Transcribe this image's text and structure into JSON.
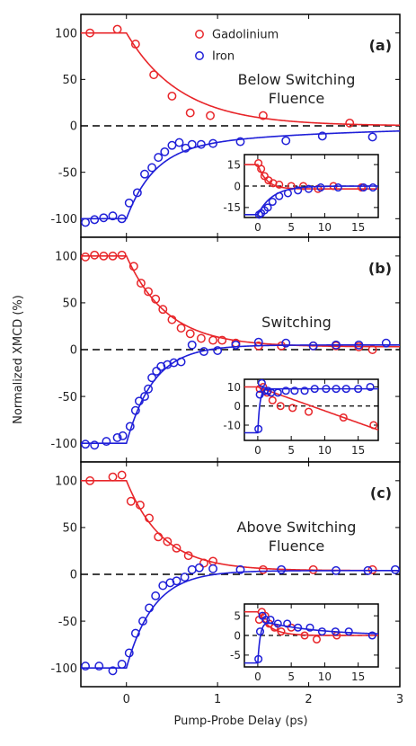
{
  "figure": {
    "ylabel": "Normalized XMCD (%)",
    "xlabel": "Pump-Probe Delay (ps)",
    "legend": [
      {
        "name": "Gadolinium",
        "color": "#e8262a"
      },
      {
        "name": "Iron",
        "color": "#1f1fd8"
      }
    ],
    "colors": {
      "gd": "#e8262a",
      "fe": "#1f1fd8",
      "axis": "#000000",
      "zero_line": "#000000"
    }
  },
  "chart_data": [
    {
      "type": "scatter",
      "panel": "(a)",
      "annotation": [
        "Below Switching",
        "Fluence"
      ],
      "xlim": [
        -0.5,
        3
      ],
      "ylim": [
        -120,
        120
      ],
      "xticks": [
        0,
        1,
        2,
        3
      ],
      "yticks": [
        -100,
        -50,
        0,
        50,
        100
      ],
      "zero_line": "dashed",
      "series": [
        {
          "name": "Gadolinium",
          "marker": "open-circle",
          "x": [
            -0.4,
            -0.1,
            0.1,
            0.3,
            0.5,
            0.7,
            0.92,
            1.5,
            2.45
          ],
          "y": [
            100,
            104,
            88,
            55,
            32,
            14,
            11,
            11,
            3
          ],
          "fit": {
            "t0": 0,
            "tau": 0.6,
            "start": 100,
            "end": 0
          }
        },
        {
          "name": "Iron",
          "marker": "open-circle",
          "x": [
            -0.45,
            -0.35,
            -0.25,
            -0.15,
            -0.05,
            0.03,
            0.12,
            0.2,
            0.28,
            0.35,
            0.42,
            0.5,
            0.58,
            0.65,
            0.72,
            0.82,
            0.95,
            1.25,
            1.75,
            2.15,
            2.7
          ],
          "y": [
            -104,
            -101,
            -99,
            -97,
            -100,
            -83,
            -72,
            -52,
            -45,
            -34,
            -28,
            -21,
            -18,
            -24,
            -20,
            -20,
            -19,
            -17,
            -16,
            -11,
            -12
          ],
          "fit": {
            "t0": 0,
            "tau": 0.3,
            "start": -100,
            "end": -25,
            "slow_tau": 2,
            "slow_end": 0
          }
        }
      ],
      "inset": {
        "xlim": [
          -2,
          18
        ],
        "ylim": [
          -22,
          22
        ],
        "xticks": [
          0,
          5,
          10,
          15
        ],
        "yticks": [
          -15,
          0,
          15
        ],
        "series": [
          {
            "name": "Gadolinium",
            "x": [
              0.1,
              0.5,
              1,
              1.6,
              2.3,
              3.2,
              5,
              6.8,
              9,
              11.3,
              15.5
            ],
            "y": [
              16,
              12,
              7,
              4,
              2,
              1,
              0,
              0,
              -2,
              0,
              -1
            ],
            "fit": {
              "t0": 0,
              "tau": 1.3,
              "start": 15,
              "end": -2
            }
          },
          {
            "name": "Iron",
            "x": [
              0.2,
              0.5,
              1,
              1.5,
              2.2,
              3.2,
              4.5,
              6,
              7.6,
              9.4,
              12,
              15.8,
              17.2
            ],
            "y": [
              -20,
              -19,
              -17,
              -15,
              -11,
              -7,
              -5,
              -3,
              -2,
              -1,
              -1,
              -1,
              -1
            ],
            "fit": {
              "t0": 0,
              "tau": 2.2,
              "start": -20,
              "end": 0
            }
          }
        ]
      }
    },
    {
      "type": "scatter",
      "panel": "(b)",
      "annotation": [
        "Switching"
      ],
      "xlim": [
        -0.5,
        3
      ],
      "ylim": [
        -120,
        120
      ],
      "xticks": [
        0,
        1,
        2,
        3
      ],
      "yticks": [
        -100,
        -50,
        0,
        50,
        100
      ],
      "zero_line": "dashed",
      "series": [
        {
          "name": "Gadolinium",
          "marker": "open-circle",
          "x": [
            -0.45,
            -0.35,
            -0.25,
            -0.15,
            -0.05,
            0.08,
            0.16,
            0.24,
            0.32,
            0.4,
            0.5,
            0.6,
            0.7,
            0.82,
            0.95,
            1.05,
            1.2,
            1.45,
            1.7,
            2.05,
            2.3,
            2.55,
            2.7
          ],
          "y": [
            99,
            101,
            100,
            100,
            101,
            89,
            71,
            62,
            54,
            43,
            32,
            23,
            17,
            12,
            10,
            10,
            7,
            4,
            4,
            4,
            4,
            3,
            0
          ],
          "fit": {
            "t0": 0,
            "tau": 0.45,
            "start": 100,
            "end": 3
          }
        },
        {
          "name": "Iron",
          "marker": "open-circle",
          "x": [
            -0.45,
            -0.35,
            -0.22,
            -0.1,
            -0.04,
            0.04,
            0.1,
            0.14,
            0.2,
            0.24,
            0.28,
            0.33,
            0.38,
            0.45,
            0.52,
            0.6,
            0.72,
            0.85,
            1.0,
            1.2,
            1.45,
            1.75,
            2.05,
            2.3,
            2.55,
            2.85
          ],
          "y": [
            -101,
            -102,
            -98,
            -94,
            -92,
            -82,
            -65,
            -55,
            -50,
            -42,
            -30,
            -23,
            -18,
            -16,
            -14,
            -13,
            5,
            -2,
            -1,
            5,
            8,
            7,
            4,
            5,
            5,
            7
          ],
          "fit": {
            "t0": 0,
            "tau": 0.3,
            "start": -100,
            "end": 5
          }
        }
      ],
      "inset": {
        "xlim": [
          -2,
          18
        ],
        "ylim": [
          -18,
          14
        ],
        "xticks": [
          0,
          5,
          10,
          15
        ],
        "yticks": [
          -10,
          0,
          10
        ],
        "series": [
          {
            "name": "Gadolinium",
            "x": [
              0.3,
              0.8,
              1.4,
              2.2,
              3.4,
              5.2,
              7.6,
              12.8,
              17.3
            ],
            "y": [
              9,
              10,
              7,
              3,
              0,
              -1,
              -3,
              -6,
              -10
            ],
            "fit": {
              "t0": 0,
              "tau": 0.6,
              "start": 10,
              "end": -10,
              "linear": true
            }
          },
          {
            "name": "Iron",
            "x": [
              0.1,
              0.3,
              0.6,
              1,
              1.5,
              2,
              3,
              4.2,
              5.5,
              7,
              8.5,
              10.2,
              11.7,
              13.2,
              15,
              16.8
            ],
            "y": [
              -12,
              6,
              12,
              8,
              8,
              7,
              7,
              8,
              8,
              8,
              9,
              9,
              9,
              9,
              9,
              10
            ],
            "fit": {
              "t0": 0,
              "tau": 0.3,
              "start": -14,
              "end": 9
            }
          }
        ]
      }
    },
    {
      "type": "scatter",
      "panel": "(c)",
      "annotation": [
        "Above Switching",
        "Fluence"
      ],
      "xlim": [
        -0.5,
        3
      ],
      "ylim": [
        -120,
        120
      ],
      "xticks": [
        0,
        1,
        2,
        3
      ],
      "yticks": [
        -100,
        -50,
        0,
        50,
        100
      ],
      "zero_line": "dashed",
      "series": [
        {
          "name": "Gadolinium",
          "marker": "open-circle",
          "x": [
            -0.4,
            -0.15,
            -0.05,
            0.05,
            0.15,
            0.25,
            0.35,
            0.45,
            0.55,
            0.68,
            0.85,
            0.95,
            1.5,
            2.05,
            2.7
          ],
          "y": [
            100,
            104,
            106,
            78,
            74,
            60,
            40,
            35,
            28,
            20,
            12,
            14,
            5,
            5,
            5
          ],
          "fit": {
            "t0": 0,
            "tau": 0.4,
            "start": 100,
            "end": 4
          }
        },
        {
          "name": "Iron",
          "marker": "open-circle",
          "x": [
            -0.45,
            -0.3,
            -0.15,
            -0.05,
            0.03,
            0.1,
            0.18,
            0.25,
            0.32,
            0.4,
            0.48,
            0.55,
            0.64,
            0.72,
            0.8,
            0.95,
            1.25,
            1.7,
            2.3,
            2.65,
            2.95
          ],
          "y": [
            -98,
            -98,
            -103,
            -96,
            -84,
            -63,
            -50,
            -36,
            -23,
            -12,
            -9,
            -7,
            -3,
            5,
            7,
            6,
            5,
            5,
            4,
            4,
            5
          ],
          "fit": {
            "t0": 0,
            "tau": 0.3,
            "start": -100,
            "end": 4
          }
        }
      ],
      "inset": {
        "xlim": [
          -2,
          18
        ],
        "ylim": [
          -8,
          8
        ],
        "xticks": [
          0,
          5,
          10,
          15
        ],
        "yticks": [
          -5,
          0,
          5
        ],
        "series": [
          {
            "name": "Gadolinium",
            "x": [
              0.2,
              0.6,
              1.1,
              1.7,
              2.5,
              3.5,
              5,
              7,
              8.8,
              11.8
            ],
            "y": [
              4,
              6,
              5,
              3,
              2,
              1,
              2,
              0,
              -1,
              0
            ],
            "fit": {
              "t0": 0,
              "tau": 1.8,
              "start": 6,
              "end": 0
            }
          },
          {
            "name": "Iron",
            "x": [
              0.1,
              0.35,
              0.7,
              1.2,
              1.9,
              3,
              4.4,
              6,
              7.8,
              9.6,
              11.6,
              13.6,
              17.1
            ],
            "y": [
              -6,
              1,
              5,
              4,
              4,
              3,
              3,
              2,
              2,
              1,
              1,
              1,
              0
            ],
            "fit": {
              "t0": 0,
              "tau": 0.4,
              "start": -7,
              "end": 4,
              "decay_to": 0,
              "decay_tau": 8
            }
          }
        ]
      }
    }
  ]
}
